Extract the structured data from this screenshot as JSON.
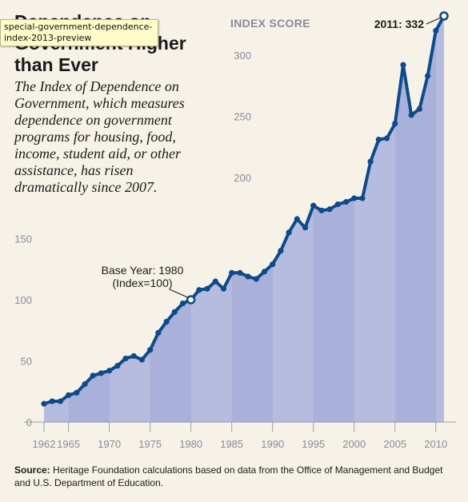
{
  "header": {
    "title": "Dependence on Government Higher than Ever",
    "subtitle": "The Index of Dependence on Government, which measures dependence on government programs for housing, food, income, student aid, or other assistance, has risen dramatically since 2007."
  },
  "tooltip": {
    "text": "special-government-dependence-index-2013-preview"
  },
  "footer": {
    "source_label": "Source:",
    "source_text": "Heritage Foundation calculations based on data from the Office of Management and Budget and U.S. Department of Education."
  },
  "colors": {
    "background": "#f7f2e8",
    "area_fill": "#b6bce0",
    "area_band": "#a9b0da",
    "line": "#0d4a8a",
    "grid_label": "#8a8a96"
  },
  "chart_data": {
    "type": "area",
    "ylabel": "INDEX SCORE",
    "xlim": [
      1962,
      2011
    ],
    "ylim": [
      0,
      332
    ],
    "yticks_right": [
      200,
      250,
      300
    ],
    "yticks_left": [
      0,
      50,
      100,
      150
    ],
    "xticks": [
      1962,
      1965,
      1970,
      1975,
      1980,
      1985,
      1990,
      1995,
      2000,
      2005,
      2010
    ],
    "x": [
      1962,
      1963,
      1964,
      1965,
      1966,
      1967,
      1968,
      1969,
      1970,
      1971,
      1972,
      1973,
      1974,
      1975,
      1976,
      1977,
      1978,
      1979,
      1980,
      1981,
      1982,
      1983,
      1984,
      1985,
      1986,
      1987,
      1988,
      1989,
      1990,
      1991,
      1992,
      1993,
      1994,
      1995,
      1996,
      1997,
      1998,
      1999,
      2000,
      2001,
      2002,
      2003,
      2004,
      2005,
      2006,
      2007,
      2008,
      2009,
      2010,
      2011
    ],
    "y": [
      15,
      17,
      17,
      22,
      24,
      31,
      38,
      40,
      42,
      46,
      52,
      54,
      51,
      59,
      73,
      82,
      90,
      97,
      100,
      108,
      109,
      115,
      109,
      122,
      122,
      119,
      117,
      123,
      129,
      140,
      155,
      166,
      159,
      177,
      173,
      174,
      178,
      180,
      183,
      183,
      213,
      231,
      232,
      244,
      292,
      251,
      256,
      283,
      320,
      332
    ],
    "annotations": [
      {
        "text_lines": [
          "Base Year: 1980",
          "(Index=100)"
        ],
        "x": 1980,
        "y": 100
      },
      {
        "text": "2011: 332",
        "x": 2011,
        "y": 332
      }
    ],
    "grid": false
  }
}
